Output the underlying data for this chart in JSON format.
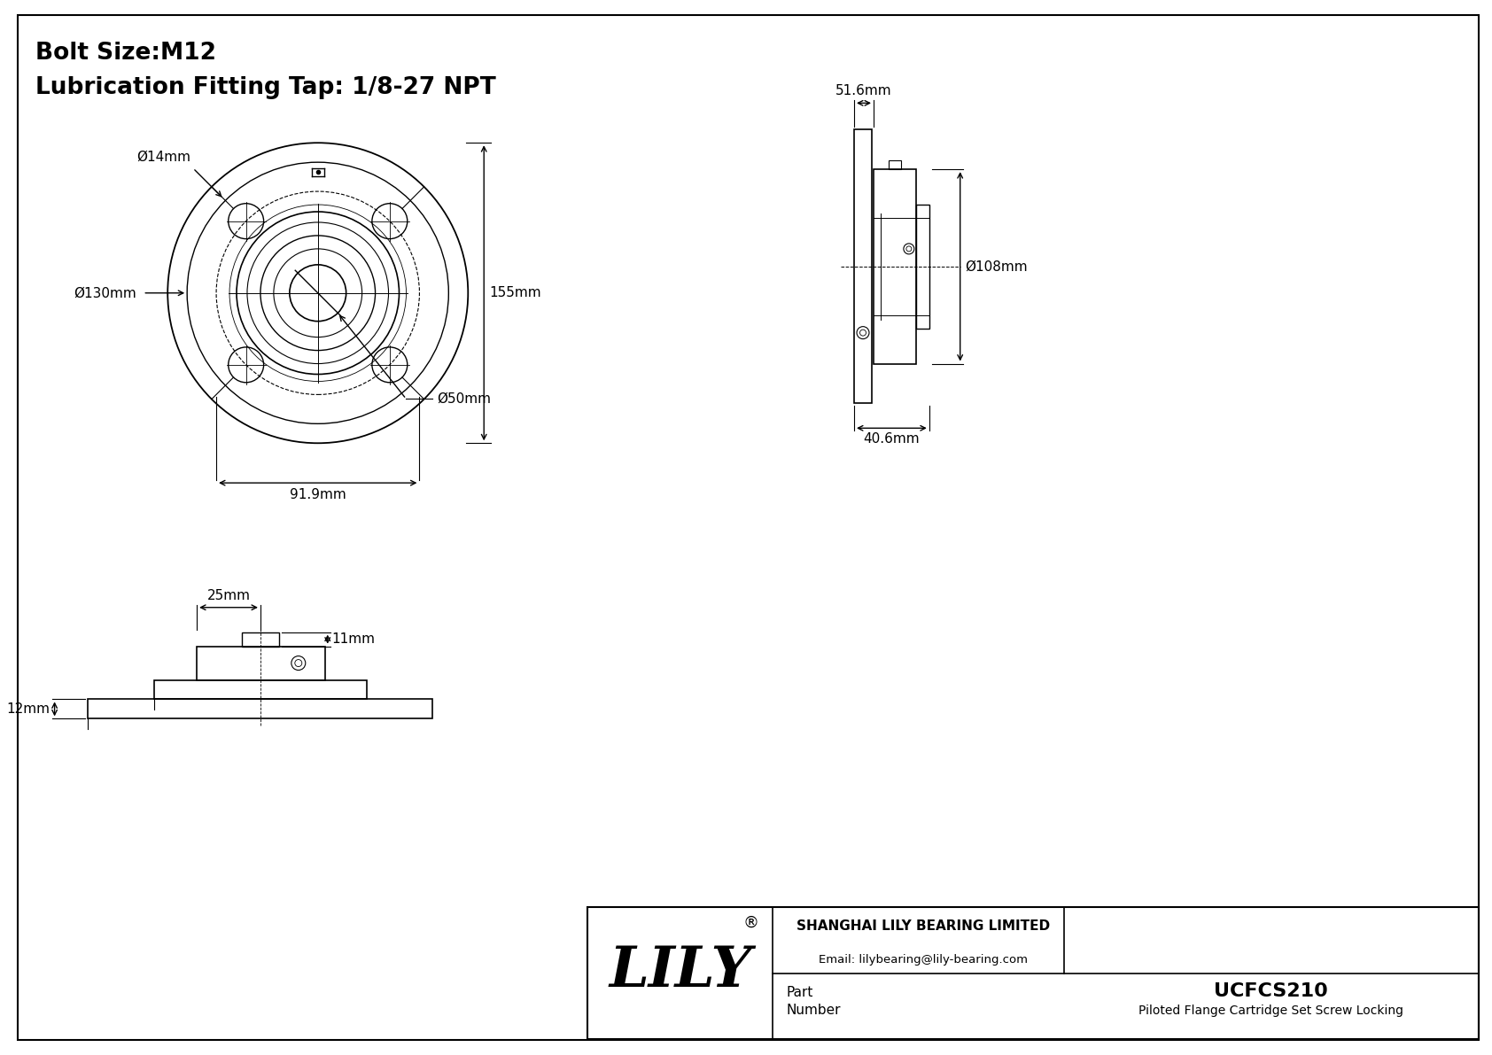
{
  "title_line1": "Bolt Size:M12",
  "title_line2": "Lubrication Fitting Tap: 1/8-27 NPT",
  "part_number": "UCFCS210",
  "part_desc": "Piloted Flange Cartridge Set Screw Locking",
  "company": "SHANGHAI LILY BEARING LIMITED",
  "email": "Email: lilybearing@lily-bearing.com",
  "brand": "LILY",
  "dims": {
    "bolt_hole_dia": "Ø14mm",
    "flange_dia": "Ø130mm",
    "outer_dia": "155mm",
    "bolt_circle": "91.9mm",
    "inner_dia": "Ø50mm",
    "side_width": "51.6mm",
    "side_height": "Ø108mm",
    "side_depth1": "40.6mm",
    "top_width": "25mm",
    "top_height": "11mm",
    "base_height": "12mm"
  },
  "bg_color": "#ffffff",
  "line_color": "#000000",
  "dim_color": "#000000",
  "border_color": "#000000",
  "title_fontsize": 19,
  "dim_fontsize": 11,
  "label_fontsize": 13
}
